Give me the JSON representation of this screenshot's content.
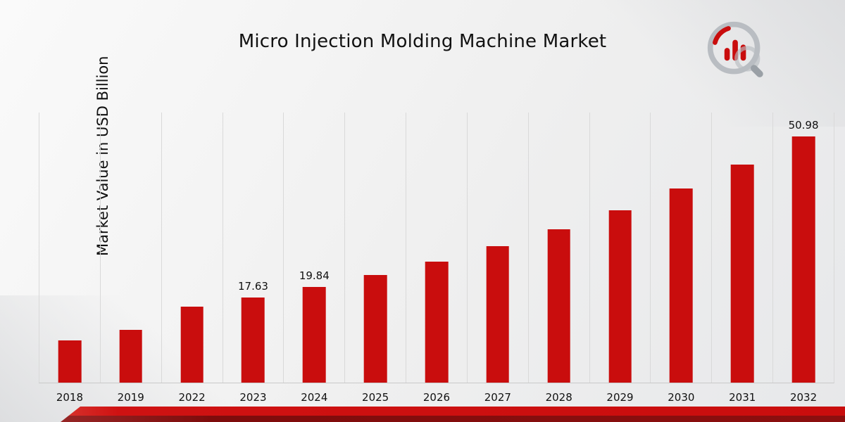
{
  "page": {
    "title": "Micro Injection Molding Machine Market",
    "y_axis_label": "Market Value in USD Billion"
  },
  "chart_data": {
    "type": "bar",
    "title": "Micro Injection Molding Machine Market",
    "categories": [
      "2018",
      "2019",
      "2022",
      "2023",
      "2024",
      "2025",
      "2026",
      "2027",
      "2028",
      "2029",
      "2030",
      "2031",
      "2032"
    ],
    "values": [
      8.72,
      10.92,
      15.68,
      17.63,
      19.84,
      22.32,
      25.11,
      28.25,
      31.79,
      35.77,
      40.24,
      45.28,
      50.98
    ],
    "data_labels": {
      "2023": "17.63",
      "2024": "19.84",
      "2032": "50.98"
    },
    "xlabel": "",
    "ylabel": "Market Value in USD Billion",
    "ylim": [
      0,
      56
    ],
    "bar_color": "#c90d0d",
    "gridlines": "vertical",
    "legend": "none"
  }
}
